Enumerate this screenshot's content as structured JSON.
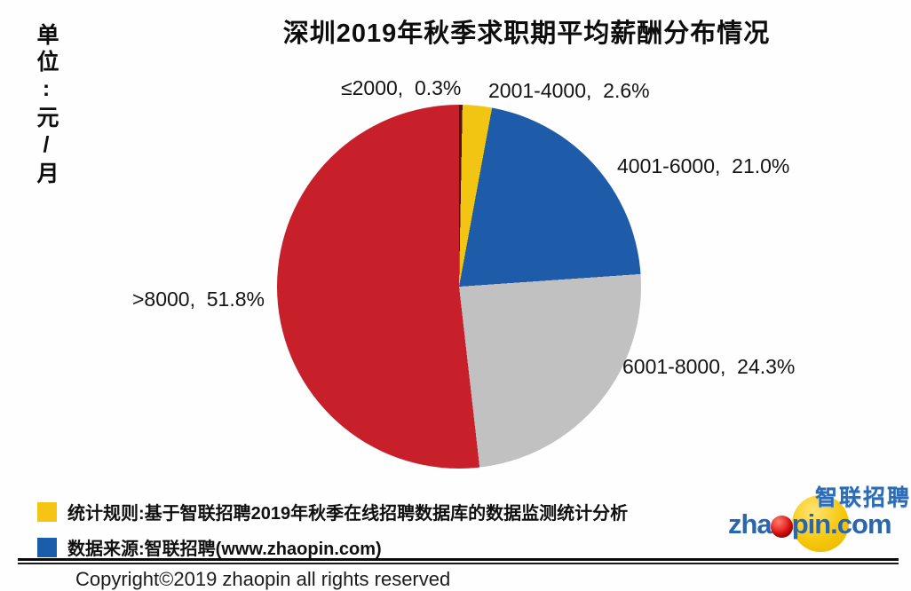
{
  "title": "深圳2019年秋季求职期平均薪酬分布情况",
  "unit_label": "单位:元/月",
  "chart_data": {
    "type": "pie",
    "title": "深圳2019年秋季求职期平均薪酬分布情况",
    "unit": "元/月",
    "categories": [
      "≤2000",
      "2001-4000",
      "4001-6000",
      "6001-8000",
      ">8000"
    ],
    "values": [
      0.3,
      2.6,
      21.0,
      24.3,
      51.8
    ],
    "colors": [
      "#4a161c",
      "#f3c513",
      "#1e5ba8",
      "#c2c1c1",
      "#c8202b"
    ],
    "labels": [
      "≤2000,  0.3%",
      "2001-4000,  2.6%",
      "4001-6000,  21.0%",
      "6001-8000,  24.3%",
      ">8000,  51.8%"
    ],
    "start_angle_deg": 0,
    "direction": "clockwise",
    "legend_position": "none"
  },
  "legend": {
    "items": [
      {
        "color": "#f5c414",
        "text": "统计规则:基于智联招聘2019年秋季在线招聘数据库的数据监测统计分析"
      },
      {
        "color": "#1a5dab",
        "text": "数据来源:智联招聘(www.zhaopin.com)"
      }
    ]
  },
  "footer": {
    "copyright": "Copyright©2019 zhaopin all rights reserved"
  },
  "logo": {
    "cn": "智联招聘",
    "en_pre": "zha",
    "en_post": "pin.com"
  }
}
